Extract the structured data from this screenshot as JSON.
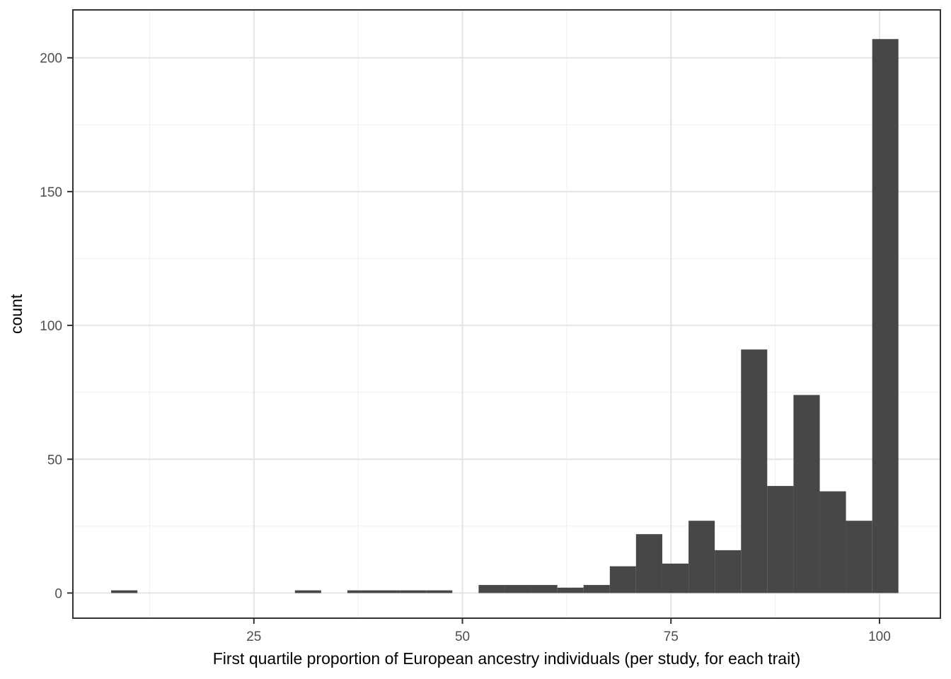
{
  "chart_data": {
    "type": "bar",
    "subtype": "histogram",
    "title": "",
    "xlabel": "First quartile proportion of European ancestry individuals (per study, for each trait)",
    "ylabel": "count",
    "bin_width": 3.15,
    "bins": [
      {
        "x0": 7.89,
        "x1": 11.04,
        "count": 1
      },
      {
        "x0": 11.04,
        "x1": 14.18,
        "count": 0
      },
      {
        "x0": 14.18,
        "x1": 17.33,
        "count": 0
      },
      {
        "x0": 17.33,
        "x1": 20.48,
        "count": 0
      },
      {
        "x0": 20.48,
        "x1": 23.62,
        "count": 0
      },
      {
        "x0": 23.62,
        "x1": 26.77,
        "count": 0
      },
      {
        "x0": 26.77,
        "x1": 29.92,
        "count": 0
      },
      {
        "x0": 29.92,
        "x1": 33.06,
        "count": 1
      },
      {
        "x0": 33.06,
        "x1": 36.21,
        "count": 0
      },
      {
        "x0": 36.21,
        "x1": 39.35,
        "count": 1
      },
      {
        "x0": 39.35,
        "x1": 42.5,
        "count": 1
      },
      {
        "x0": 42.5,
        "x1": 45.65,
        "count": 1
      },
      {
        "x0": 45.65,
        "x1": 48.79,
        "count": 1
      },
      {
        "x0": 48.79,
        "x1": 51.94,
        "count": 0
      },
      {
        "x0": 51.94,
        "x1": 55.08,
        "count": 3
      },
      {
        "x0": 55.08,
        "x1": 58.23,
        "count": 3
      },
      {
        "x0": 58.23,
        "x1": 61.38,
        "count": 3
      },
      {
        "x0": 61.38,
        "x1": 64.52,
        "count": 2
      },
      {
        "x0": 64.52,
        "x1": 67.67,
        "count": 3
      },
      {
        "x0": 67.67,
        "x1": 70.81,
        "count": 10
      },
      {
        "x0": 70.81,
        "x1": 73.96,
        "count": 22
      },
      {
        "x0": 73.96,
        "x1": 77.11,
        "count": 11
      },
      {
        "x0": 77.11,
        "x1": 80.25,
        "count": 27
      },
      {
        "x0": 80.25,
        "x1": 83.4,
        "count": 16
      },
      {
        "x0": 83.4,
        "x1": 86.54,
        "count": 91
      },
      {
        "x0": 86.54,
        "x1": 89.69,
        "count": 40
      },
      {
        "x0": 89.69,
        "x1": 92.84,
        "count": 74
      },
      {
        "x0": 92.84,
        "x1": 95.98,
        "count": 38
      },
      {
        "x0": 95.98,
        "x1": 99.13,
        "count": 27
      },
      {
        "x0": 99.13,
        "x1": 102.27,
        "count": 207
      }
    ],
    "x_ticks": [
      25,
      50,
      75,
      100
    ],
    "x_minor_ticks": [
      12.5,
      37.5,
      62.5,
      87.5
    ],
    "y_ticks": [
      0,
      50,
      100,
      150,
      200
    ],
    "y_minor_ticks": [
      25,
      75,
      125,
      175
    ],
    "xlim": [
      3.3,
      107.3
    ],
    "ylim": [
      -9.4,
      217.9
    ],
    "grid": true,
    "legend": "none",
    "styles": {
      "bar_color": "#474747",
      "grid_major_color": "#e4e4e4",
      "grid_minor_color": "#efefef",
      "panel_border_color": "#333333",
      "tick_color": "#333333",
      "tick_label_color": "#4d4d4d",
      "axis_title_color": "#000000",
      "background": "#ffffff"
    }
  }
}
